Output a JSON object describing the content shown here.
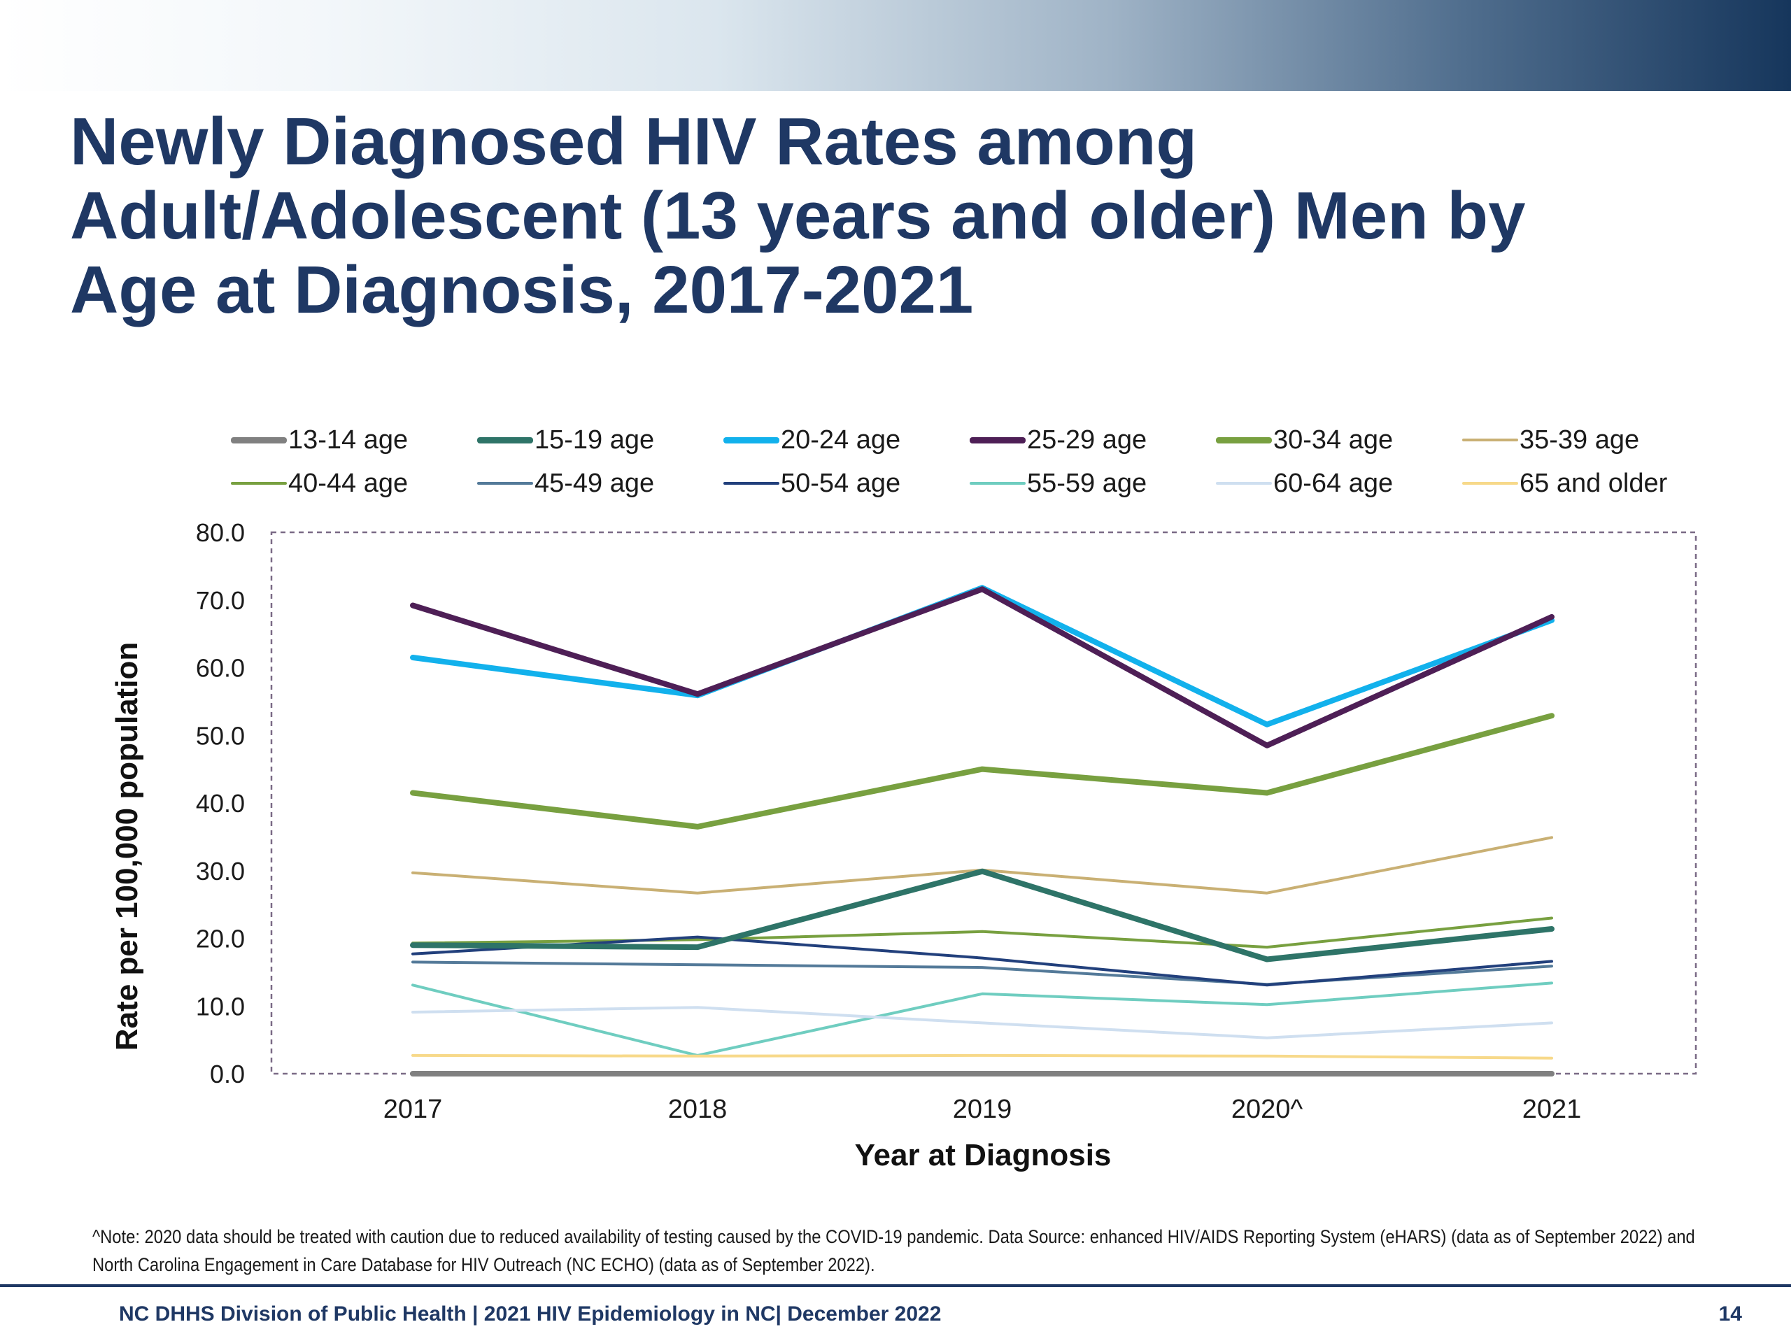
{
  "slide": {
    "title": "Newly Diagnosed HIV Rates among\nAdult/Adolescent (13 years and older) Men by\nAge at Diagnosis, 2017-2021",
    "footnote": "^Note: 2020 data should be treated with caution due to reduced availability  of testing caused by the COVID-19 pandemic. Data Source: enhanced HIV/AIDS Reporting System (eHARS) (data as of September 2022) and North Carolina Engagement in Care Database for HIV Outreach (NC ECHO) (data as of September 2022).",
    "footer": "NC DHHS Division of Public Health | 2021 HIV Epidemiology in NC| December 2022",
    "page_number": "14"
  },
  "chart_data": {
    "type": "line",
    "xlabel": "Year at Diagnosis",
    "ylabel": "Rate per 100,000 population",
    "categories": [
      "2017",
      "2018",
      "2019",
      "2020^",
      "2021"
    ],
    "ylim": [
      0,
      80
    ],
    "yticks": [
      "0.0",
      "10.0",
      "20.0",
      "30.0",
      "40.0",
      "50.0",
      "60.0",
      "70.0",
      "80.0"
    ],
    "grid": false,
    "legend_position": "top",
    "series": [
      {
        "name": "13-14 age",
        "color": "#808080",
        "weight": "thick",
        "values": [
          0.0,
          0.0,
          0.0,
          0.0,
          0.0
        ]
      },
      {
        "name": "15-19 age",
        "color": "#2e7468",
        "weight": "thick",
        "values": [
          19.0,
          18.7,
          29.9,
          16.9,
          21.4
        ]
      },
      {
        "name": "20-24 age",
        "color": "#12b1ec",
        "weight": "thick",
        "values": [
          61.5,
          55.9,
          71.8,
          51.6,
          67.0
        ]
      },
      {
        "name": "25-29 age",
        "color": "#4e1f56",
        "weight": "thick",
        "values": [
          69.2,
          56.1,
          71.6,
          48.5,
          67.5
        ]
      },
      {
        "name": "30-34 age",
        "color": "#78a040",
        "weight": "thick",
        "values": [
          41.5,
          36.5,
          45.0,
          41.5,
          52.9
        ]
      },
      {
        "name": "35-39 age",
        "color": "#c9b074",
        "weight": "thin",
        "values": [
          29.7,
          26.7,
          30.1,
          26.7,
          34.9
        ]
      },
      {
        "name": "40-44 age",
        "color": "#78a040",
        "weight": "thin",
        "values": [
          19.3,
          19.8,
          21.0,
          18.7,
          23.0
        ]
      },
      {
        "name": "45-49 age",
        "color": "#547a99",
        "weight": "thin",
        "values": [
          16.5,
          16.1,
          15.7,
          13.2,
          15.9
        ]
      },
      {
        "name": "50-54 age",
        "color": "#22407c",
        "weight": "thin",
        "values": [
          17.7,
          20.2,
          17.1,
          13.1,
          16.6
        ]
      },
      {
        "name": "55-59 age",
        "color": "#6fcdc0",
        "weight": "thin",
        "values": [
          13.1,
          2.7,
          11.8,
          10.2,
          13.4
        ]
      },
      {
        "name": "60-64 age",
        "color": "#cfdff0",
        "weight": "thin",
        "values": [
          9.1,
          9.8,
          7.5,
          5.3,
          7.5
        ]
      },
      {
        "name": "65 and older",
        "color": "#f7d98a",
        "weight": "thin",
        "values": [
          2.7,
          2.6,
          2.7,
          2.6,
          2.3
        ]
      }
    ]
  }
}
